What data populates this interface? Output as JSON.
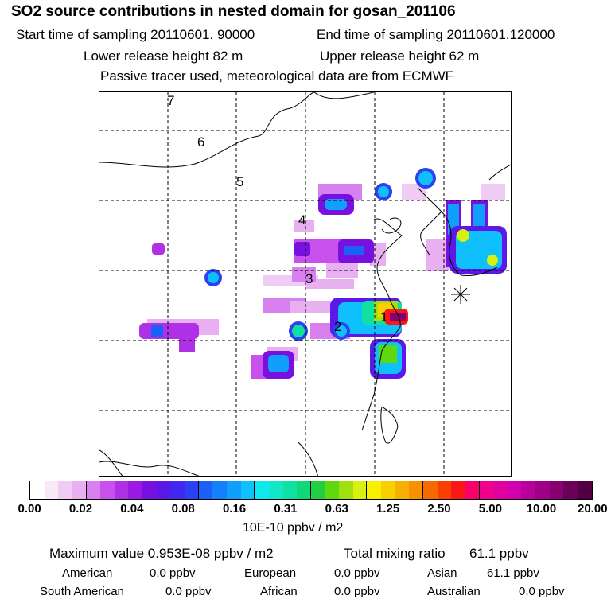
{
  "header": {
    "title": "SO2 source contributions in nested domain for gosan_201106",
    "start_time": "Start time of sampling 20110601. 90000",
    "end_time": "End time of sampling 20110601.120000",
    "lower_height": "Lower release height   82 m",
    "upper_height": "Upper release height   62 m",
    "tracer_note": "Passive tracer used, meteorological data are from ECMWF"
  },
  "map": {
    "region_labels": [
      "1",
      "2",
      "3",
      "4",
      "5",
      "6",
      "7"
    ],
    "receptor_marker": "asterisk-marker"
  },
  "colorbar": {
    "tick_labels": [
      "0.00",
      "0.02",
      "0.04",
      "0.08",
      "0.16",
      "0.31",
      "0.63",
      "1.25",
      "2.50",
      "5.00",
      "10.00",
      "20.00"
    ],
    "colors": [
      "#ffffff",
      "#f8e8f8",
      "#f0ccf4",
      "#e8b0f0",
      "#d880f0",
      "#c850ec",
      "#b030e8",
      "#9c18e4",
      "#7810e0",
      "#5c18e8",
      "#4028f0",
      "#2c40f4",
      "#1c60f8",
      "#1480fc",
      "#10a0fc",
      "#10c0fc",
      "#10e8f0",
      "#10e8c8",
      "#10e0a0",
      "#10d878",
      "#20d040",
      "#60d810",
      "#a0e010",
      "#d8f010",
      "#f8f000",
      "#f8d000",
      "#f8b000",
      "#f89000",
      "#f86800",
      "#f84000",
      "#f81818",
      "#f8006c",
      "#f0008c",
      "#e000a0",
      "#d000b0",
      "#b8009c",
      "#a00088",
      "#880070",
      "#6c0058",
      "#500040"
    ],
    "units": "10E-10 ppbv / m2"
  },
  "summary": {
    "max_label": "Maximum value  0.953E-08 ppbv / m2",
    "total_label": "Total mixing ratio",
    "total_value": "61.1 ppbv",
    "regions": [
      {
        "name": "American",
        "value": "0.0 ppbv"
      },
      {
        "name": "European",
        "value": "0.0 ppbv"
      },
      {
        "name": "Asian",
        "value": "61.1 ppbv"
      },
      {
        "name": "South American",
        "value": "0.0 ppbv"
      },
      {
        "name": "African",
        "value": "0.0 ppbv"
      },
      {
        "name": "Australian",
        "value": "0.0 ppbv"
      }
    ]
  }
}
